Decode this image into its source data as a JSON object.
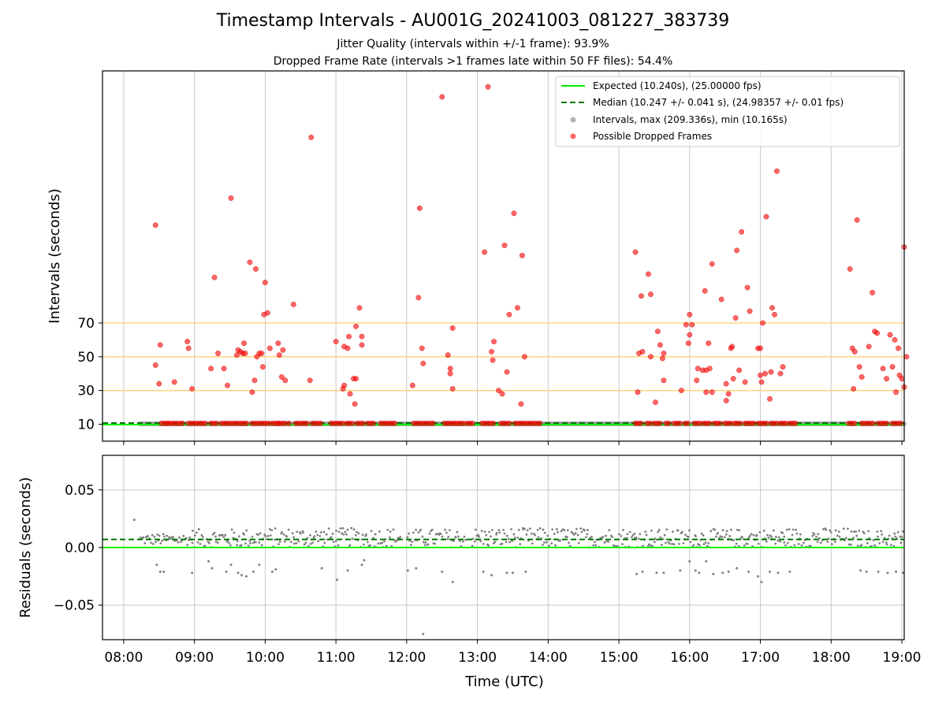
{
  "header": {
    "title": "Timestamp Intervals - AU001G_20241003_081227_383739",
    "subtitle_1": "Jitter Quality (intervals within +/-1 frame): 93.9%",
    "subtitle_2": "Dropped Frame Rate (intervals >1 frames late within 50 FF files): 54.4%"
  },
  "colors": {
    "expected": "#00ee00",
    "median": "#007700",
    "intervals": "#808080",
    "dropped": "#ff0000",
    "threshold": "#ffd070",
    "grid": "#c8c8c8"
  },
  "chart_data": [
    {
      "type": "scatter",
      "panel": "top",
      "ylabel": "Intervals (seconds)",
      "xlim": [
        "07:42",
        "19:02"
      ],
      "y_ticks": [
        10,
        30,
        50,
        70
      ],
      "threshold_lines": [
        30,
        50,
        70
      ],
      "grid": "vertical",
      "legend_position": "top-right",
      "legend": [
        {
          "label": "Expected (10.240s), (25.00000 fps)",
          "kind": "line",
          "color": "#00ee00",
          "style": "solid"
        },
        {
          "label": "Median (10.247 +/- 0.041 s), (24.98357 +/- 0.01 fps)",
          "kind": "line",
          "color": "#007700",
          "style": "dashed"
        },
        {
          "label": "Intervals, max (209.336s), min (10.165s)",
          "kind": "marker",
          "color": "#a0a0a0"
        },
        {
          "label": "Possible Dropped Frames",
          "kind": "marker",
          "color": "#ff4040"
        }
      ],
      "expected": 10.24,
      "median": 10.247,
      "intervals_span": [
        [
          "08:14",
          "19:02"
        ]
      ],
      "dropped_at_base_segments": [
        [
          "08:32",
          "08:37"
        ],
        [
          "08:38",
          "08:52"
        ],
        [
          "08:55",
          "09:11"
        ],
        [
          "09:14",
          "09:21"
        ],
        [
          "09:23",
          "09:46"
        ],
        [
          "09:49",
          "10:04"
        ],
        [
          "10:06",
          "10:12"
        ],
        [
          "10:12",
          "10:18"
        ],
        [
          "10:20",
          "10:22"
        ],
        [
          "10:26",
          "10:37"
        ],
        [
          "10:40",
          "10:48"
        ],
        [
          "10:56",
          "11:07"
        ],
        [
          "11:09",
          "11:15"
        ],
        [
          "11:18",
          "11:25"
        ],
        [
          "11:27",
          "11:33"
        ],
        [
          "11:38",
          "11:52"
        ],
        [
          "12:06",
          "12:12"
        ],
        [
          "12:13",
          "12:24"
        ],
        [
          "12:32",
          "12:35"
        ],
        [
          "12:36",
          "12:48"
        ],
        [
          "12:51",
          "12:58"
        ],
        [
          "13:04",
          "13:14"
        ],
        [
          "13:20",
          "13:28"
        ],
        [
          "13:32",
          "13:37"
        ],
        [
          "13:39",
          "13:44"
        ],
        [
          "13:46",
          "13:55"
        ],
        [
          "15:14",
          "15:20"
        ],
        [
          "15:24",
          "15:28"
        ],
        [
          "15:30",
          "15:36"
        ],
        [
          "15:40",
          "15:44"
        ],
        [
          "15:47",
          "15:52"
        ],
        [
          "15:56",
          "16:00"
        ],
        [
          "16:04",
          "16:09"
        ],
        [
          "16:12",
          "16:17"
        ],
        [
          "16:21",
          "16:28"
        ],
        [
          "16:30",
          "16:35"
        ],
        [
          "16:38",
          "16:44"
        ],
        [
          "16:47",
          "16:55"
        ],
        [
          "16:58",
          "17:06"
        ],
        [
          "17:09",
          "17:14"
        ],
        [
          "17:17",
          "17:23"
        ],
        [
          "17:25",
          "17:31"
        ],
        [
          "18:15",
          "18:22"
        ],
        [
          "18:26",
          "18:36"
        ],
        [
          "18:40",
          "18:48"
        ],
        [
          "18:52",
          "19:01"
        ]
      ],
      "dropped_points": [
        [
          "08:27",
          128
        ],
        [
          "08:27",
          45
        ],
        [
          "08:30",
          34
        ],
        [
          "08:31",
          57
        ],
        [
          "08:43",
          35
        ],
        [
          "08:54",
          59
        ],
        [
          "08:55",
          55
        ],
        [
          "08:58",
          31
        ],
        [
          "09:14",
          43
        ],
        [
          "09:17",
          97
        ],
        [
          "09:20",
          52
        ],
        [
          "09:25",
          43
        ],
        [
          "09:28",
          33
        ],
        [
          "09:31",
          144
        ],
        [
          "09:36",
          51
        ],
        [
          "09:37",
          54
        ],
        [
          "09:39",
          53
        ],
        [
          "09:41",
          52
        ],
        [
          "09:42",
          58
        ],
        [
          "09:43",
          52
        ],
        [
          "09:47",
          106
        ],
        [
          "09:49",
          29
        ],
        [
          "09:51",
          36
        ],
        [
          "09:52",
          102
        ],
        [
          "09:53",
          50
        ],
        [
          "09:55",
          52
        ],
        [
          "09:57",
          52
        ],
        [
          "09:58",
          44
        ],
        [
          "09:59",
          75
        ],
        [
          "10:00",
          94
        ],
        [
          "10:02",
          76
        ],
        [
          "10:04",
          55
        ],
        [
          "10:11",
          58
        ],
        [
          "10:12",
          51
        ],
        [
          "10:14",
          38
        ],
        [
          "10:15",
          54
        ],
        [
          "10:17",
          36
        ],
        [
          "10:24",
          81
        ],
        [
          "10:38",
          36
        ],
        [
          "10:39",
          180
        ],
        [
          "11:00",
          59
        ],
        [
          "11:06",
          31
        ],
        [
          "11:07",
          56
        ],
        [
          "11:07",
          33
        ],
        [
          "11:10",
          55
        ],
        [
          "11:12",
          28
        ],
        [
          "11:11",
          62
        ],
        [
          "11:16",
          22
        ],
        [
          "11:15",
          37
        ],
        [
          "11:17",
          37
        ],
        [
          "11:17",
          68
        ],
        [
          "11:20",
          79
        ],
        [
          "11:22",
          62
        ],
        [
          "11:22",
          57
        ],
        [
          "12:05",
          33
        ],
        [
          "12:10",
          85
        ],
        [
          "12:11",
          138
        ],
        [
          "12:13",
          55
        ],
        [
          "12:14",
          46
        ],
        [
          "12:30",
          204
        ],
        [
          "12:35",
          51
        ],
        [
          "12:37",
          40
        ],
        [
          "12:37",
          43
        ],
        [
          "12:39",
          31
        ],
        [
          "12:39",
          67
        ],
        [
          "13:06",
          112
        ],
        [
          "13:09",
          210
        ],
        [
          "13:12",
          53
        ],
        [
          "13:13",
          48
        ],
        [
          "13:14",
          59
        ],
        [
          "13:18",
          30
        ],
        [
          "13:21",
          28
        ],
        [
          "13:23",
          116
        ],
        [
          "13:25",
          41
        ],
        [
          "13:27",
          75
        ],
        [
          "13:31",
          135
        ],
        [
          "13:34",
          79
        ],
        [
          "13:37",
          22
        ],
        [
          "13:38",
          110
        ],
        [
          "13:40",
          50
        ],
        [
          "15:14",
          112
        ],
        [
          "15:16",
          29
        ],
        [
          "15:17",
          52
        ],
        [
          "15:19",
          86
        ],
        [
          "15:20",
          53
        ],
        [
          "15:25",
          99
        ],
        [
          "15:27",
          50
        ],
        [
          "15:27",
          87
        ],
        [
          "15:31",
          23
        ],
        [
          "15:33",
          65
        ],
        [
          "15:35",
          57
        ],
        [
          "15:37",
          49
        ],
        [
          "15:38",
          52
        ],
        [
          "15:38",
          36
        ],
        [
          "15:53",
          30
        ],
        [
          "15:57",
          69
        ],
        [
          "15:59",
          58
        ],
        [
          "16:00",
          63
        ],
        [
          "16:00",
          75
        ],
        [
          "16:02",
          69
        ],
        [
          "16:06",
          36
        ],
        [
          "16:07",
          43
        ],
        [
          "16:11",
          42
        ],
        [
          "16:13",
          89
        ],
        [
          "16:14",
          29
        ],
        [
          "16:14",
          42
        ],
        [
          "16:16",
          58
        ],
        [
          "16:17",
          43
        ],
        [
          "16:19",
          105
        ],
        [
          "16:19",
          29
        ],
        [
          "16:27",
          84
        ],
        [
          "16:31",
          24
        ],
        [
          "16:31",
          34
        ],
        [
          "16:33",
          28
        ],
        [
          "16:35",
          55
        ],
        [
          "16:36",
          56
        ],
        [
          "16:37",
          37
        ],
        [
          "16:39",
          73
        ],
        [
          "16:40",
          113
        ],
        [
          "16:42",
          42
        ],
        [
          "16:44",
          124
        ],
        [
          "16:47",
          35
        ],
        [
          "16:49",
          91
        ],
        [
          "16:51",
          77
        ],
        [
          "16:58",
          55
        ],
        [
          "17:00",
          39
        ],
        [
          "17:00",
          55
        ],
        [
          "17:01",
          35
        ],
        [
          "17:02",
          70
        ],
        [
          "17:04",
          40
        ],
        [
          "17:05",
          133
        ],
        [
          "17:08",
          25
        ],
        [
          "17:09",
          41
        ],
        [
          "17:10",
          79
        ],
        [
          "17:12",
          75
        ],
        [
          "17:14",
          160
        ],
        [
          "17:17",
          40
        ],
        [
          "17:19",
          44
        ],
        [
          "18:16",
          102
        ],
        [
          "18:18",
          55
        ],
        [
          "18:19",
          31
        ],
        [
          "18:20",
          53
        ],
        [
          "18:22",
          131
        ],
        [
          "18:24",
          44
        ],
        [
          "18:26",
          38
        ],
        [
          "18:32",
          56
        ],
        [
          "18:35",
          88
        ],
        [
          "18:37",
          65
        ],
        [
          "18:39",
          64
        ],
        [
          "18:44",
          43
        ],
        [
          "18:47",
          37
        ],
        [
          "18:50",
          63
        ],
        [
          "18:52",
          44
        ],
        [
          "18:54",
          60
        ],
        [
          "18:55",
          29
        ],
        [
          "18:57",
          55
        ],
        [
          "18:58",
          39
        ],
        [
          "19:00",
          37
        ],
        [
          "19:02",
          32
        ],
        [
          "19:02",
          115
        ],
        [
          "19:04",
          50
        ]
      ]
    },
    {
      "type": "scatter",
      "panel": "bottom",
      "xlabel": "Time (UTC)",
      "ylabel": "Residuals (seconds)",
      "ylim": [
        -0.08,
        0.08
      ],
      "y_ticks": [
        0.05,
        0.0,
        -0.05
      ],
      "y_tick_labels": [
        "0.05",
        "0.00",
        "−0.05"
      ],
      "x_ticks": [
        "08:00",
        "09:00",
        "10:00",
        "11:00",
        "12:00",
        "13:00",
        "14:00",
        "15:00",
        "16:00",
        "17:00",
        "18:00",
        "19:00"
      ],
      "grid": "both",
      "expected_residual": 0.0,
      "median_residual": 0.007,
      "residual_segments": [
        {
          "from": "08:14",
          "to": "08:58",
          "band": [
            0.002,
            0.012
          ]
        },
        {
          "from": "08:58",
          "to": "10:00",
          "band": [
            0.0,
            0.016
          ]
        },
        {
          "from": "10:00",
          "to": "11:00",
          "band": [
            0.0,
            0.017
          ]
        },
        {
          "from": "11:00",
          "to": "11:55",
          "band": [
            0.0,
            0.017
          ]
        },
        {
          "from": "12:00",
          "to": "12:50",
          "band": [
            0.0,
            0.016
          ]
        },
        {
          "from": "12:55",
          "to": "13:55",
          "band": [
            0.0,
            0.017
          ]
        },
        {
          "from": "13:55",
          "to": "15:05",
          "band": [
            0.0,
            0.017
          ]
        },
        {
          "from": "15:05",
          "to": "16:10",
          "band": [
            0.0,
            0.016
          ]
        },
        {
          "from": "16:10",
          "to": "17:20",
          "band": [
            0.0,
            0.016
          ]
        },
        {
          "from": "17:20",
          "to": "18:15",
          "band": [
            0.0,
            0.017
          ]
        },
        {
          "from": "18:15",
          "to": "19:02",
          "band": [
            0.0,
            0.015
          ]
        }
      ],
      "residual_outliers": [
        [
          "08:09",
          0.024
        ],
        [
          "08:28",
          -0.015
        ],
        [
          "08:31",
          -0.021
        ],
        [
          "08:34",
          -0.021
        ],
        [
          "08:58",
          -0.022
        ],
        [
          "09:12",
          -0.012
        ],
        [
          "09:15",
          -0.018
        ],
        [
          "09:27",
          -0.021
        ],
        [
          "09:31",
          -0.015
        ],
        [
          "09:37",
          -0.022
        ],
        [
          "09:40",
          -0.024
        ],
        [
          "09:44",
          -0.025
        ],
        [
          "09:50",
          -0.021
        ],
        [
          "09:55",
          -0.015
        ],
        [
          "10:06",
          -0.021
        ],
        [
          "10:09",
          -0.019
        ],
        [
          "10:48",
          -0.018
        ],
        [
          "11:01",
          -0.028
        ],
        [
          "11:10",
          -0.02
        ],
        [
          "11:22",
          -0.015
        ],
        [
          "11:24",
          -0.011
        ],
        [
          "12:01",
          -0.02
        ],
        [
          "12:08",
          -0.018
        ],
        [
          "12:14",
          -0.075
        ],
        [
          "12:30",
          -0.021
        ],
        [
          "12:39",
          -0.03
        ],
        [
          "13:05",
          -0.021
        ],
        [
          "13:12",
          -0.024
        ],
        [
          "13:25",
          -0.022
        ],
        [
          "13:30",
          -0.022
        ],
        [
          "13:41",
          -0.021
        ],
        [
          "15:15",
          -0.023
        ],
        [
          "15:20",
          -0.021
        ],
        [
          "15:32",
          -0.022
        ],
        [
          "15:38",
          -0.022
        ],
        [
          "15:52",
          -0.02
        ],
        [
          "16:00",
          -0.012
        ],
        [
          "16:05",
          -0.02
        ],
        [
          "16:08",
          -0.022
        ],
        [
          "16:14",
          -0.012
        ],
        [
          "16:20",
          -0.023
        ],
        [
          "16:28",
          -0.022
        ],
        [
          "16:33",
          -0.021
        ],
        [
          "16:40",
          -0.018
        ],
        [
          "16:50",
          -0.021
        ],
        [
          "16:58",
          -0.025
        ],
        [
          "17:01",
          -0.03
        ],
        [
          "17:08",
          -0.021
        ],
        [
          "17:15",
          -0.022
        ],
        [
          "17:25",
          -0.021
        ],
        [
          "18:25",
          -0.02
        ],
        [
          "18:30",
          -0.021
        ],
        [
          "18:40",
          -0.021
        ],
        [
          "18:48",
          -0.022
        ],
        [
          "18:55",
          -0.021
        ],
        [
          "19:01",
          -0.022
        ]
      ]
    }
  ]
}
